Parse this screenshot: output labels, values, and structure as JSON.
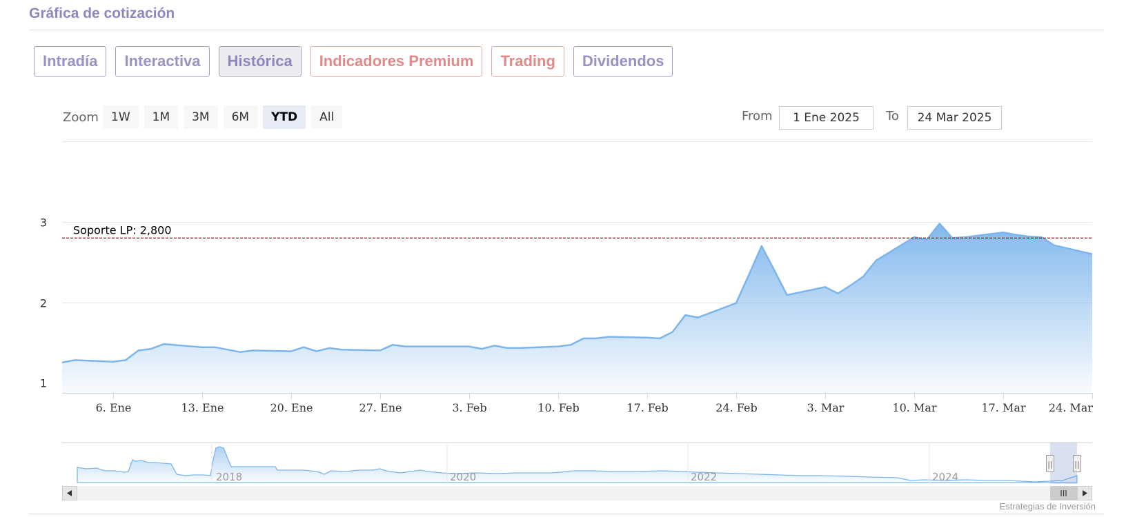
{
  "section_title": "Gráfica de cotización",
  "tabs": [
    {
      "label": "Intradía",
      "style": "purple",
      "active": false
    },
    {
      "label": "Interactiva",
      "style": "purple",
      "active": false
    },
    {
      "label": "Histórica",
      "style": "purple",
      "active": true
    },
    {
      "label": "Indicadores Premium",
      "style": "red",
      "active": false
    },
    {
      "label": "Trading",
      "style": "red",
      "active": false
    },
    {
      "label": "Dividendos",
      "style": "purple",
      "active": false
    }
  ],
  "range_selector": {
    "zoom_label": "Zoom",
    "buttons": [
      "1W",
      "1M",
      "3M",
      "6M",
      "YTD",
      "All"
    ],
    "selected": "YTD",
    "from_label": "From",
    "from_value": "1 Ene 2025",
    "to_label": "To",
    "to_value": "24 Mar 2025"
  },
  "colors": {
    "series_line": "#7cb5ec",
    "support_line": "#a01c2c",
    "tab_purple": "#9a91c5",
    "tab_red": "#e08a8a"
  },
  "chart_data": {
    "type": "area",
    "title": "",
    "xlabel": "",
    "ylabel": "",
    "ylim": [
      1,
      3
    ],
    "grid": true,
    "y_ticks": [
      1,
      2,
      3
    ],
    "x_ticks": [
      {
        "label": "6. Ene",
        "date": "2025-01-06"
      },
      {
        "label": "13. Ene",
        "date": "2025-01-13"
      },
      {
        "label": "20. Ene",
        "date": "2025-01-20"
      },
      {
        "label": "27. Ene",
        "date": "2025-01-27"
      },
      {
        "label": "3. Feb",
        "date": "2025-02-03"
      },
      {
        "label": "10. Feb",
        "date": "2025-02-10"
      },
      {
        "label": "17. Feb",
        "date": "2025-02-17"
      },
      {
        "label": "24. Feb",
        "date": "2025-02-24"
      },
      {
        "label": "3. Mar",
        "date": "2025-03-03"
      },
      {
        "label": "10. Mar",
        "date": "2025-03-10"
      },
      {
        "label": "17. Mar",
        "date": "2025-03-17"
      },
      {
        "label": "24. Mar",
        "date": "2025-03-24"
      }
    ],
    "x_range": [
      "2025-01-02",
      "2025-03-24"
    ],
    "series": [
      {
        "x": [
          "2025-01-02",
          "2025-01-03",
          "2025-01-06",
          "2025-01-07",
          "2025-01-08",
          "2025-01-09",
          "2025-01-10",
          "2025-01-13",
          "2025-01-14",
          "2025-01-15",
          "2025-01-16",
          "2025-01-17",
          "2025-01-20",
          "2025-01-21",
          "2025-01-22",
          "2025-01-23",
          "2025-01-24",
          "2025-01-27",
          "2025-01-28",
          "2025-01-29",
          "2025-01-30",
          "2025-01-31",
          "2025-02-03",
          "2025-02-04",
          "2025-02-05",
          "2025-02-06",
          "2025-02-07",
          "2025-02-10",
          "2025-02-11",
          "2025-02-12",
          "2025-02-13",
          "2025-02-14",
          "2025-02-17",
          "2025-02-18",
          "2025-02-19",
          "2025-02-20",
          "2025-02-21",
          "2025-02-24",
          "2025-02-25",
          "2025-02-26",
          "2025-02-27",
          "2025-02-28",
          "2025-03-03",
          "2025-03-04",
          "2025-03-05",
          "2025-03-06",
          "2025-03-07",
          "2025-03-10",
          "2025-03-11",
          "2025-03-12",
          "2025-03-13",
          "2025-03-14",
          "2025-03-17",
          "2025-03-18",
          "2025-03-19",
          "2025-03-20",
          "2025-03-21",
          "2025-03-24"
        ],
        "values": [
          1.25,
          1.28,
          1.26,
          1.28,
          1.4,
          1.42,
          1.48,
          1.44,
          1.44,
          1.41,
          1.38,
          1.4,
          1.39,
          1.44,
          1.39,
          1.43,
          1.41,
          1.4,
          1.47,
          1.45,
          1.45,
          1.45,
          1.45,
          1.42,
          1.46,
          1.43,
          1.43,
          1.45,
          1.47,
          1.55,
          1.55,
          1.57,
          1.56,
          1.55,
          1.63,
          1.84,
          1.81,
          1.99,
          2.34,
          2.7,
          2.4,
          2.09,
          2.19,
          2.11,
          2.21,
          2.32,
          2.52,
          2.81,
          2.78,
          2.98,
          2.8,
          2.81,
          2.87,
          2.84,
          2.82,
          2.81,
          2.71,
          2.6
        ]
      }
    ],
    "annotations": [
      {
        "type": "plot_line",
        "value": 2.8,
        "label": "Soporte LP: 2,800"
      }
    ],
    "navigator": {
      "year_labels": [
        "2018",
        "2020",
        "2022",
        "2024"
      ],
      "scrollbar_glyph": "III",
      "handle_glyph": "||"
    },
    "credits": "Estrategias de Inversión"
  }
}
